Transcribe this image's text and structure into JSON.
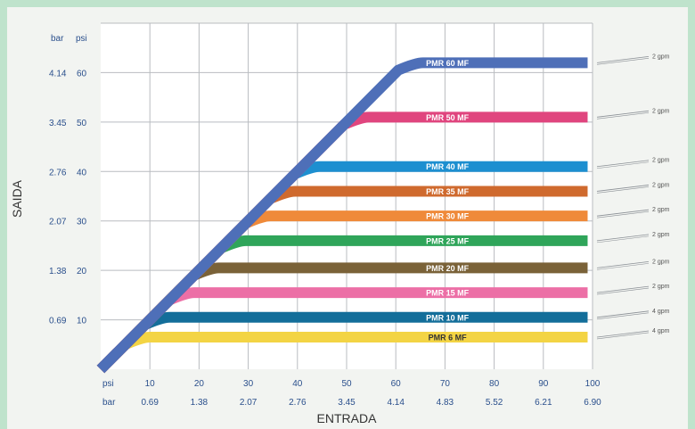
{
  "chart_data": {
    "type": "line",
    "xlabel": "ENTRADA",
    "ylabel": "SAIDA",
    "x_unit_psi": "psi",
    "x_unit_bar": "bar",
    "y_unit_bar": "bar",
    "y_unit_psi": "psi",
    "xlim": [
      0,
      100
    ],
    "ylim": [
      0,
      70
    ],
    "grid": true,
    "x_ticks_psi": [
      "10",
      "20",
      "30",
      "40",
      "50",
      "60",
      "70",
      "80",
      "90",
      "100"
    ],
    "x_ticks_bar": [
      "0.69",
      "1.38",
      "2.07",
      "2.76",
      "3.45",
      "4.14",
      "4.83",
      "5.52",
      "6.21",
      "6.90"
    ],
    "y_ticks_psi": [
      "10",
      "20",
      "30",
      "40",
      "50",
      "60"
    ],
    "y_ticks_bar": [
      "0.69",
      "1.38",
      "2.07",
      "2.76",
      "3.45",
      "4.14"
    ],
    "y_tick_values": [
      10,
      20,
      30,
      40,
      50,
      60
    ],
    "series": [
      {
        "name": "PMR 60 MF",
        "plateau": 62,
        "color": "#4e6fb8"
      },
      {
        "name": "PMR 50 MF",
        "plateau": 51,
        "color": "#e0457e"
      },
      {
        "name": "PMR 40 MF",
        "plateau": 41,
        "color": "#1d8fd0"
      },
      {
        "name": "PMR 35 MF",
        "plateau": 36,
        "color": "#cf6a2e"
      },
      {
        "name": "PMR 30 MF",
        "plateau": 31,
        "color": "#ef8a3a"
      },
      {
        "name": "PMR 25 MF",
        "plateau": 26,
        "color": "#2fa55a"
      },
      {
        "name": "PMR 20 MF",
        "plateau": 20.5,
        "color": "#7a6238"
      },
      {
        "name": "PMR 15 MF",
        "plateau": 15.5,
        "color": "#ec6fa6"
      },
      {
        "name": "PMR 10 MF",
        "plateau": 10.5,
        "color": "#136e9a"
      },
      {
        "name": "PMR 6 MF",
        "plateau": 6.5,
        "color": "#f3d444"
      }
    ],
    "side_notes": [
      "2 gpm",
      "2 gpm",
      "2 gpm",
      "2 gpm",
      "2 gpm",
      "2 gpm",
      "2 gpm",
      "2 gpm",
      "4 gpm",
      "4 gpm"
    ]
  }
}
